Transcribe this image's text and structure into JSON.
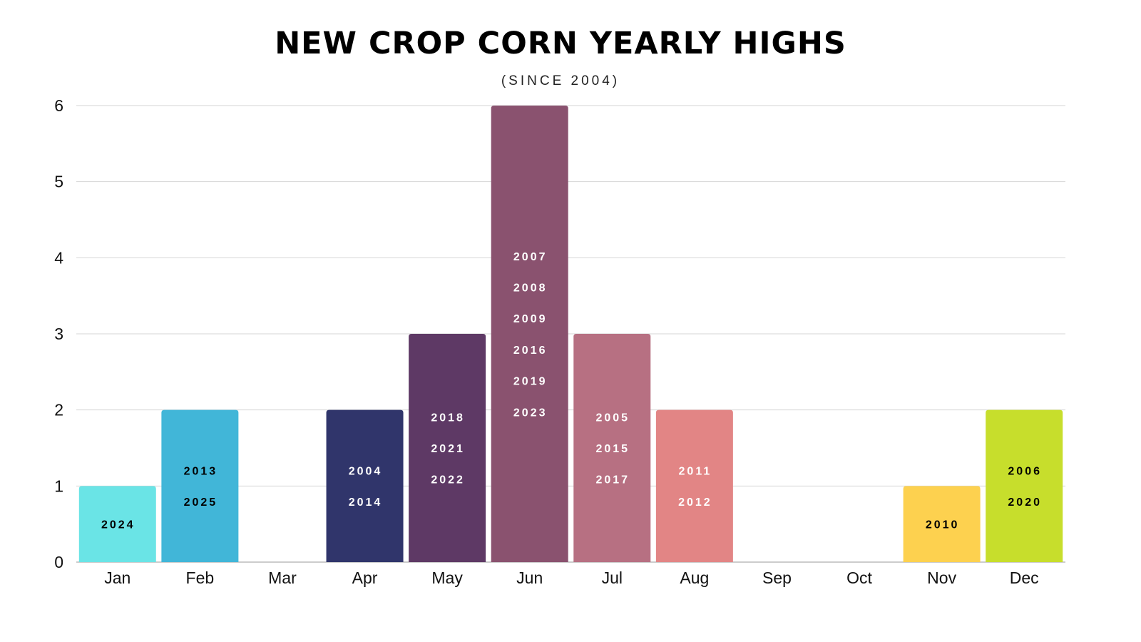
{
  "chart_data": {
    "type": "bar",
    "title": "NEW CROP CORN YEARLY HIGHS",
    "subtitle": "(SINCE 2004)",
    "xlabel": "",
    "ylabel": "",
    "ylim": [
      0,
      6
    ],
    "yticks": [
      "0",
      "1",
      "2",
      "3",
      "4",
      "5",
      "6"
    ],
    "grid": true,
    "categories": [
      "Jan",
      "Feb",
      "Mar",
      "Apr",
      "May",
      "Jun",
      "Jul",
      "Aug",
      "Sep",
      "Oct",
      "Nov",
      "Dec"
    ],
    "values": [
      1,
      2,
      0,
      2,
      3,
      6,
      3,
      2,
      0,
      0,
      1,
      2
    ],
    "colors": [
      "#6ae4e6",
      "#41b6d8",
      "#cccccc",
      "#30356b",
      "#5e3965",
      "#8a526f",
      "#b77082",
      "#e28585",
      "#cccccc",
      "#cccccc",
      "#fdd14f",
      "#c7de2c"
    ],
    "label_colors": [
      "#000000",
      "#000000",
      "#000000",
      "#ffffff",
      "#ffffff",
      "#ffffff",
      "#ffffff",
      "#ffffff",
      "#000000",
      "#000000",
      "#000000",
      "#000000"
    ],
    "years": [
      [
        "2024"
      ],
      [
        "2013",
        "2025"
      ],
      [],
      [
        "2004",
        "2014"
      ],
      [
        "2018",
        "2021",
        "2022"
      ],
      [
        "2007",
        "2008",
        "2009",
        "2016",
        "2019",
        "2023"
      ],
      [
        "2005",
        "2015",
        "2017"
      ],
      [
        "2011",
        "2012"
      ],
      [],
      [],
      [
        "2010"
      ],
      [
        "2006",
        "2020"
      ]
    ]
  }
}
